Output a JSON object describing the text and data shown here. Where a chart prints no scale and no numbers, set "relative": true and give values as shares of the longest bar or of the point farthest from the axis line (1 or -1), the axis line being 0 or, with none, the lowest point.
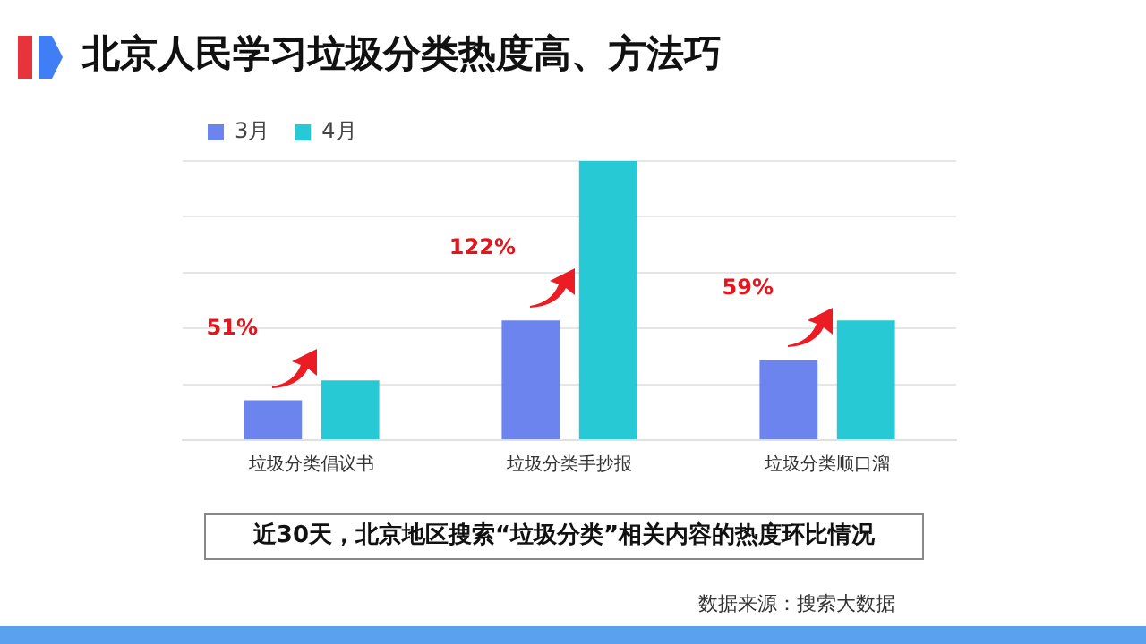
{
  "chart_data": {
    "type": "bar",
    "title": "北京人民学习垃圾分类热度高、方法巧",
    "relative": true,
    "categories": [
      "垃圾分类倡议书",
      "垃圾分类手抄报",
      "垃圾分类顺口溜"
    ],
    "series": [
      {
        "name": "3月",
        "color": "#6b84ee",
        "values": [
          0.143,
          0.429,
          0.286
        ]
      },
      {
        "name": "4月",
        "color": "#26c9d4",
        "values": [
          0.214,
          1,
          0.429
        ]
      }
    ],
    "grid": "y",
    "legend": "top left",
    "annotations": [
      "51%",
      "122%",
      "59%",
      "近30天，北京地区搜索“垃圾分类”相关内容的热度环比情况",
      "数据来源：搜索大数据"
    ]
  }
}
